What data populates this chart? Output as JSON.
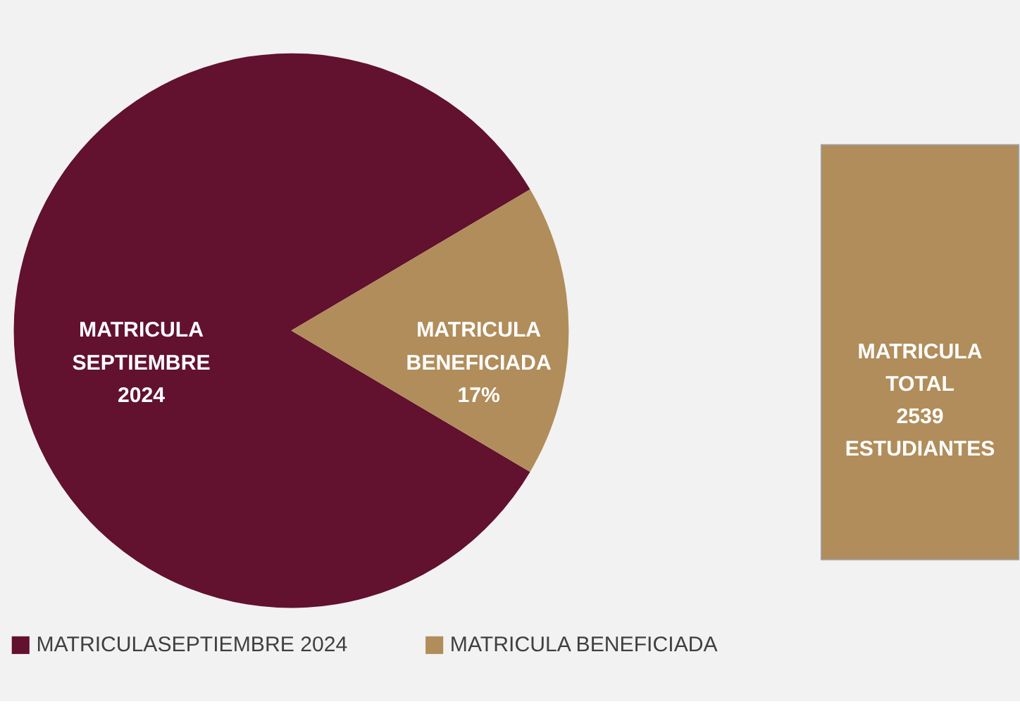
{
  "chart_data": [
    {
      "type": "pie",
      "categories": [
        "MATRICULASEPTIEMBRE 2024",
        "MATRICULA BENEFICIADA"
      ],
      "values": [
        83,
        17
      ],
      "colors": [
        "#62112f",
        "#b08d5a"
      ],
      "value_labels": [
        "MATRICULA SEPTIEMBRE 2024",
        "MATRICULA BENEFICIADA 17%"
      ],
      "legend": "bottom"
    },
    {
      "type": "other",
      "annotations": [
        "MATRICULA TOTAL 2539 ESTUDIANTES"
      ]
    }
  ]
}
